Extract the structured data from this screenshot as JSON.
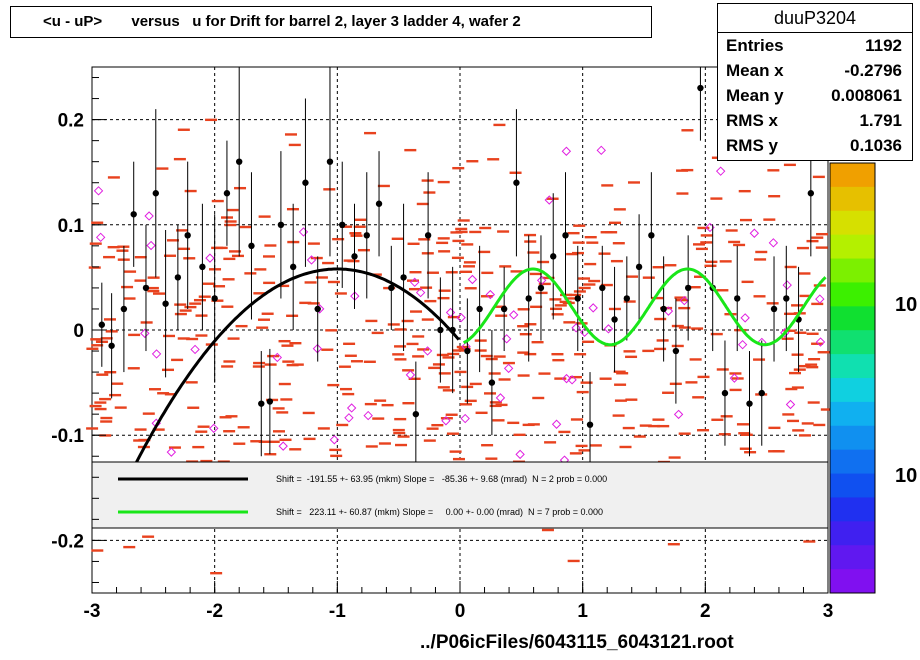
{
  "title": "<u - uP>       versus   u for Drift for barrel 2, layer 3 ladder 4, wafer 2",
  "stats": {
    "name": "duuP3204",
    "rows": [
      {
        "label": "Entries",
        "value": "1192"
      },
      {
        "label": "Mean x",
        "value": "-0.2796"
      },
      {
        "label": "Mean y",
        "value": "0.008061"
      },
      {
        "label": "RMS x",
        "value": "1.791"
      },
      {
        "label": "RMS y",
        "value": "0.1036"
      }
    ]
  },
  "footer": "../P06icFiles/6043115_6043121.root",
  "colors": {
    "dash": "#e8421e",
    "point": "#000000",
    "open_marker": "#e020e0",
    "fit_black": "#000000",
    "fit_green": "#19e619",
    "legend_bg": "#f0f0f0"
  },
  "chart_data": {
    "type": "scatter",
    "xlim": [
      -3,
      3
    ],
    "ylim": [
      -0.25,
      0.25
    ],
    "x_ticks": [
      "-3",
      "-2",
      "-1",
      "0",
      "1",
      "2",
      "3"
    ],
    "y_ticks": [
      "0.2",
      "0.1",
      "0",
      "-0.1",
      "-0.2"
    ],
    "grid": true,
    "palette_labels": [
      "10",
      "10"
    ],
    "fits": [
      {
        "color": "black",
        "x_range": [
          -3,
          0
        ],
        "peak_x": -1.0,
        "peak_y": 0.058,
        "text": "Shift =  -191.55 +- 63.95 (mkm) Slope =   -85.36 +- 9.68 (mrad)  N = 2 prob = 0.000"
      },
      {
        "color": "green",
        "x_range": [
          0.03,
          2.98
        ],
        "offset": 0.022,
        "amplitude": 0.036,
        "period": 1.26,
        "text": "Shift =   223.11 +- 60.87 (mkm) Slope =     0.00 +- 0.00 (mrad)  N = 7 prob = 0.000"
      }
    ],
    "profile_points": [
      {
        "x": -2.92,
        "y": 0.005,
        "err": 0.04
      },
      {
        "x": -2.84,
        "y": -0.015,
        "err": 0.05
      },
      {
        "x": -2.74,
        "y": 0.02,
        "err": 0.06
      },
      {
        "x": -2.66,
        "y": 0.11,
        "err": 0.05
      },
      {
        "x": -2.56,
        "y": 0.04,
        "err": 0.06
      },
      {
        "x": -2.48,
        "y": 0.13,
        "err": 0.08
      },
      {
        "x": -2.4,
        "y": 0.025,
        "err": 0.07
      },
      {
        "x": -2.3,
        "y": 0.05,
        "err": 0.05
      },
      {
        "x": -2.22,
        "y": 0.09,
        "err": 0.07
      },
      {
        "x": -2.1,
        "y": 0.06,
        "err": 0.06
      },
      {
        "x": -2.0,
        "y": 0.03,
        "err": 0.08
      },
      {
        "x": -1.9,
        "y": 0.13,
        "err": 0.05
      },
      {
        "x": -1.8,
        "y": 0.16,
        "err": 0.09
      },
      {
        "x": -1.7,
        "y": 0.08,
        "err": 0.07
      },
      {
        "x": -1.62,
        "y": -0.07,
        "err": 0.05
      },
      {
        "x": -1.55,
        "y": -0.068,
        "err": 0.05
      },
      {
        "x": -1.46,
        "y": 0.1,
        "err": 0.07
      },
      {
        "x": -1.36,
        "y": 0.06,
        "err": 0.06
      },
      {
        "x": -1.26,
        "y": 0.14,
        "err": 0.08
      },
      {
        "x": -1.16,
        "y": 0.02,
        "err": 0.05
      },
      {
        "x": -1.06,
        "y": 0.16,
        "err": 0.09
      },
      {
        "x": -0.96,
        "y": 0.1,
        "err": 0.06
      },
      {
        "x": -0.86,
        "y": 0.07,
        "err": 0.05
      },
      {
        "x": -0.76,
        "y": 0.09,
        "err": 0.06
      },
      {
        "x": -0.66,
        "y": 0.12,
        "err": 0.05
      },
      {
        "x": -0.56,
        "y": 0.04,
        "err": 0.04
      },
      {
        "x": -0.46,
        "y": 0.05,
        "err": 0.07
      },
      {
        "x": -0.36,
        "y": -0.08,
        "err": 0.05
      },
      {
        "x": -0.26,
        "y": 0.09,
        "err": 0.06
      },
      {
        "x": -0.16,
        "y": 0.0,
        "err": 0.05
      },
      {
        "x": -0.06,
        "y": 0.0,
        "err": 0.06
      },
      {
        "x": 0.06,
        "y": -0.02,
        "err": 0.05
      },
      {
        "x": 0.16,
        "y": 0.02,
        "err": 0.06
      },
      {
        "x": 0.26,
        "y": -0.05,
        "err": 0.05
      },
      {
        "x": 0.36,
        "y": 0.02,
        "err": 0.04
      },
      {
        "x": 0.46,
        "y": 0.14,
        "err": 0.07
      },
      {
        "x": 0.56,
        "y": 0.03,
        "err": 0.06
      },
      {
        "x": 0.66,
        "y": 0.04,
        "err": 0.05
      },
      {
        "x": 0.76,
        "y": 0.07,
        "err": 0.06
      },
      {
        "x": 0.86,
        "y": 0.09,
        "err": 0.06
      },
      {
        "x": 0.96,
        "y": 0.03,
        "err": 0.05
      },
      {
        "x": 1.06,
        "y": -0.09,
        "err": 0.05
      },
      {
        "x": 1.16,
        "y": 0.04,
        "err": 0.04
      },
      {
        "x": 1.26,
        "y": 0.01,
        "err": 0.05
      },
      {
        "x": 1.36,
        "y": 0.03,
        "err": 0.04
      },
      {
        "x": 1.46,
        "y": 0.06,
        "err": 0.05
      },
      {
        "x": 1.56,
        "y": 0.09,
        "err": 0.06
      },
      {
        "x": 1.66,
        "y": 0.02,
        "err": 0.05
      },
      {
        "x": 1.76,
        "y": -0.02,
        "err": 0.05
      },
      {
        "x": 1.86,
        "y": 0.04,
        "err": 0.05
      },
      {
        "x": 1.96,
        "y": 0.23,
        "err": 0.05
      },
      {
        "x": 2.06,
        "y": 0.04,
        "err": 0.06
      },
      {
        "x": 2.16,
        "y": -0.06,
        "err": 0.05
      },
      {
        "x": 2.26,
        "y": 0.03,
        "err": 0.05
      },
      {
        "x": 2.36,
        "y": -0.07,
        "err": 0.05
      },
      {
        "x": 2.46,
        "y": -0.06,
        "err": 0.05
      },
      {
        "x": 2.56,
        "y": 0.02,
        "err": 0.05
      },
      {
        "x": 2.66,
        "y": 0.03,
        "err": 0.05
      },
      {
        "x": 2.76,
        "y": 0.01,
        "err": 0.05
      },
      {
        "x": 2.86,
        "y": 0.13,
        "err": 0.06
      }
    ]
  }
}
